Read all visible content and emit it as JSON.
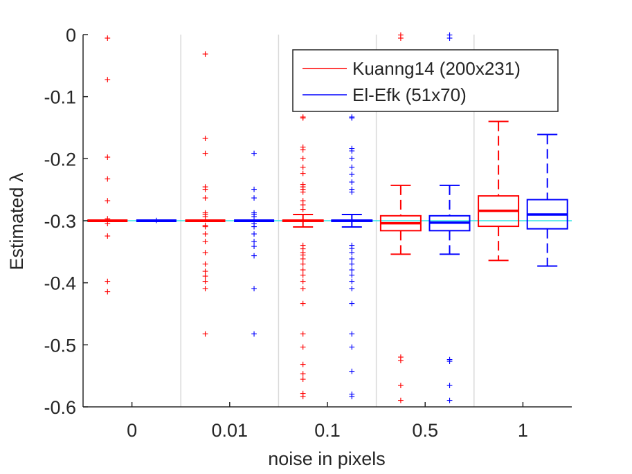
{
  "chart_data": {
    "type": "box",
    "xlabel": "noise in pixels",
    "ylabel": "Estimated λ",
    "categories": [
      "0",
      "0.01",
      "0.1",
      "0.5",
      "1"
    ],
    "ylim": [
      -0.6,
      0
    ],
    "yticks": [
      "0",
      "-0.1",
      "-0.2",
      "-0.3",
      "-0.4",
      "-0.5",
      "-0.6"
    ],
    "reference_line": -0.3,
    "legend_position": "top-right",
    "series": [
      {
        "name": "Kuanng14 (200x231)",
        "color": "#ff0000",
        "boxes": [
          {
            "category": "0",
            "q1": -0.3,
            "median": -0.3,
            "q3": -0.3,
            "whisker_low": -0.3,
            "whisker_high": -0.3,
            "outliers": [
              -0.006,
              -0.073,
              -0.198,
              -0.233,
              -0.268,
              -0.297,
              -0.305,
              -0.325,
              -0.398,
              -0.415
            ]
          },
          {
            "category": "0.01",
            "q1": -0.3,
            "median": -0.3,
            "q3": -0.3,
            "whisker_low": -0.3,
            "whisker_high": -0.3,
            "outliers": [
              -0.032,
              -0.168,
              -0.192,
              -0.246,
              -0.25,
              -0.264,
              -0.288,
              -0.29,
              -0.294,
              -0.308,
              -0.31,
              -0.322,
              -0.334,
              -0.352,
              -0.37,
              -0.382,
              -0.39,
              -0.398,
              -0.41,
              -0.483
            ]
          },
          {
            "category": "0.1",
            "q1": -0.301,
            "median": -0.3,
            "q3": -0.299,
            "whisker_low": -0.31,
            "whisker_high": -0.29,
            "outliers": [
              -0.133,
              -0.135,
              -0.182,
              -0.186,
              -0.2,
              -0.214,
              -0.224,
              -0.242,
              -0.246,
              -0.25,
              -0.254,
              -0.268,
              -0.275,
              -0.282,
              -0.34,
              -0.346,
              -0.352,
              -0.356,
              -0.362,
              -0.37,
              -0.38,
              -0.388,
              -0.398,
              -0.41,
              -0.434,
              -0.483,
              -0.504,
              -0.532,
              -0.547,
              -0.556,
              -0.579,
              -0.584
            ]
          },
          {
            "category": "0.5",
            "q1": -0.316,
            "median": -0.304,
            "q3": -0.292,
            "whisker_low": -0.354,
            "whisker_high": -0.243,
            "outliers": [
              -0.001,
              -0.006,
              -0.52,
              -0.526,
              -0.566,
              -0.59
            ]
          },
          {
            "category": "1",
            "q1": -0.309,
            "median": -0.284,
            "q3": -0.26,
            "whisker_low": -0.364,
            "whisker_high": -0.14,
            "outliers": []
          }
        ]
      },
      {
        "name": "El-Efk (51x70)",
        "color": "#0000ff",
        "boxes": [
          {
            "category": "0",
            "q1": -0.3,
            "median": -0.3,
            "q3": -0.3,
            "whisker_low": -0.3,
            "whisker_high": -0.3,
            "outliers": [
              -0.3
            ]
          },
          {
            "category": "0.01",
            "q1": -0.3,
            "median": -0.3,
            "q3": -0.3,
            "whisker_low": -0.3,
            "whisker_high": -0.3,
            "outliers": [
              -0.192,
              -0.25,
              -0.264,
              -0.288,
              -0.29,
              -0.294,
              -0.305,
              -0.31,
              -0.322,
              -0.334,
              -0.342,
              -0.357,
              -0.41,
              -0.483
            ]
          },
          {
            "category": "0.1",
            "q1": -0.301,
            "median": -0.3,
            "q3": -0.299,
            "whisker_low": -0.31,
            "whisker_high": -0.29,
            "outliers": [
              -0.133,
              -0.135,
              -0.184,
              -0.188,
              -0.2,
              -0.214,
              -0.226,
              -0.238,
              -0.25,
              -0.254,
              -0.34,
              -0.345,
              -0.352,
              -0.362,
              -0.37,
              -0.38,
              -0.388,
              -0.398,
              -0.41,
              -0.434,
              -0.483,
              -0.504,
              -0.543,
              -0.58,
              -0.584
            ]
          },
          {
            "category": "0.5",
            "q1": -0.316,
            "median": -0.303,
            "q3": -0.292,
            "whisker_low": -0.354,
            "whisker_high": -0.243,
            "outliers": [
              -0.001,
              -0.006,
              -0.524,
              -0.527,
              -0.566,
              -0.59
            ]
          },
          {
            "category": "1",
            "q1": -0.313,
            "median": -0.29,
            "q3": -0.266,
            "whisker_low": -0.373,
            "whisker_high": -0.161,
            "outliers": []
          }
        ]
      }
    ]
  }
}
